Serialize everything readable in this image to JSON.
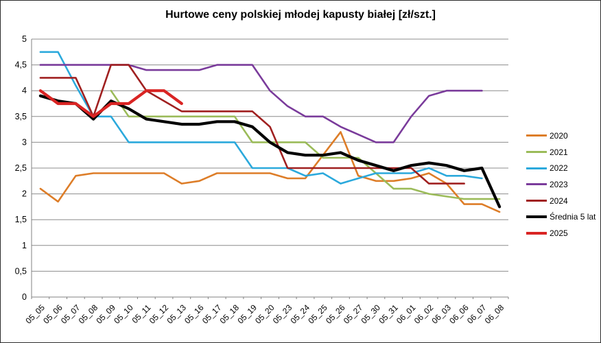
{
  "window": {
    "background": "#FFFFFF",
    "border_color": "#2B2B2B"
  },
  "title": "Hurtowe ceny polskiej młodej kapusty białej [zł/szt.]",
  "chart_data": {
    "type": "line",
    "title": "Hurtowe ceny polskiej młodej kapusty białej [zł/szt.]",
    "xlabel": "",
    "ylabel": "",
    "ylim": [
      0,
      5
    ],
    "grid": true,
    "grid_color": "#8C8C8C",
    "axis_color": "#808080",
    "tick_label_color": "#000000",
    "legend_position": "right",
    "x_labels": [
      "05_05",
      "05_06",
      "05_07",
      "05_08",
      "05_09",
      "05_10",
      "05_11",
      "05_12",
      "05_13",
      "05_16",
      "05_17",
      "05_18",
      "05_19",
      "05_20",
      "05_23",
      "05_24",
      "05_25",
      "05_26",
      "05_27",
      "05_30",
      "05_31",
      "06_01",
      "06_02",
      "06_03",
      "06_06",
      "06_07",
      "06_08"
    ],
    "y_tick_values": [
      0,
      0.5,
      1,
      1.5,
      2,
      2.5,
      3,
      3.5,
      4,
      4.5,
      5
    ],
    "y_tick_labels": [
      "0",
      "0,5",
      "1",
      "1,5",
      "2",
      "2,5",
      "3",
      "3,5",
      "4",
      "4,5",
      "5"
    ],
    "series": [
      {
        "name": "2020",
        "slug": "series-2020",
        "color": "#DD7D28",
        "width": 2.6,
        "values": [
          2.1,
          1.85,
          2.35,
          2.4,
          2.4,
          2.4,
          2.4,
          2.4,
          2.2,
          2.25,
          2.4,
          2.4,
          2.4,
          2.4,
          2.3,
          2.3,
          2.75,
          3.2,
          2.35,
          2.25,
          2.25,
          2.3,
          2.4,
          2.2,
          1.8,
          1.8,
          1.65
        ]
      },
      {
        "name": "2021",
        "slug": "series-2021",
        "color": "#9BBB59",
        "width": 2.6,
        "values": [
          null,
          null,
          null,
          null,
          4.0,
          3.5,
          3.5,
          3.5,
          3.5,
          3.5,
          3.5,
          3.5,
          3.0,
          3.0,
          3.0,
          3.0,
          2.7,
          2.7,
          2.7,
          2.4,
          2.1,
          2.1,
          2.0,
          1.95,
          1.9,
          1.9,
          1.9
        ]
      },
      {
        "name": "2022",
        "slug": "series-2022",
        "color": "#2BA9DC",
        "width": 2.6,
        "values": [
          4.75,
          4.75,
          4.1,
          3.5,
          3.5,
          3.0,
          3.0,
          3.0,
          3.0,
          3.0,
          3.0,
          3.0,
          2.5,
          2.5,
          2.5,
          2.35,
          2.4,
          2.2,
          2.3,
          2.4,
          2.4,
          2.4,
          2.5,
          2.35,
          2.35,
          2.3,
          null
        ]
      },
      {
        "name": "2023",
        "slug": "series-2023",
        "color": "#7A3B9B",
        "width": 2.6,
        "values": [
          4.5,
          4.5,
          4.5,
          4.5,
          4.5,
          4.5,
          4.4,
          4.4,
          4.4,
          4.4,
          4.5,
          4.5,
          4.5,
          4.0,
          3.7,
          3.5,
          3.5,
          3.3,
          3.15,
          3.0,
          3.0,
          3.5,
          3.9,
          4.0,
          4.0,
          4.0,
          null
        ]
      },
      {
        "name": "2024",
        "slug": "series-2024",
        "color": "#A02020",
        "width": 2.6,
        "values": [
          4.25,
          4.25,
          4.25,
          3.5,
          4.5,
          4.5,
          4.0,
          3.8,
          3.6,
          3.6,
          3.6,
          3.6,
          3.6,
          3.3,
          2.5,
          2.5,
          2.5,
          2.5,
          2.5,
          2.5,
          2.5,
          2.5,
          2.2,
          2.2,
          2.2,
          null,
          null
        ]
      },
      {
        "name": "Średnia 5 lat",
        "slug": "series-average-5yr",
        "color": "#000000",
        "width": 4.2,
        "values": [
          3.9,
          3.8,
          3.75,
          3.45,
          3.8,
          3.65,
          3.45,
          3.4,
          3.35,
          3.35,
          3.4,
          3.4,
          3.3,
          3.0,
          2.8,
          2.75,
          2.75,
          2.8,
          2.65,
          2.55,
          2.45,
          2.55,
          2.6,
          2.55,
          2.45,
          2.5,
          1.75
        ]
      },
      {
        "name": "2025",
        "slug": "series-2025",
        "color": "#D92423",
        "width": 4.2,
        "values": [
          4.0,
          3.75,
          3.75,
          3.5,
          3.75,
          3.75,
          4.0,
          4.0,
          3.75,
          null,
          null,
          null,
          null,
          null,
          null,
          null,
          null,
          null,
          null,
          null,
          null,
          null,
          null,
          null,
          null,
          null,
          null
        ]
      }
    ]
  }
}
